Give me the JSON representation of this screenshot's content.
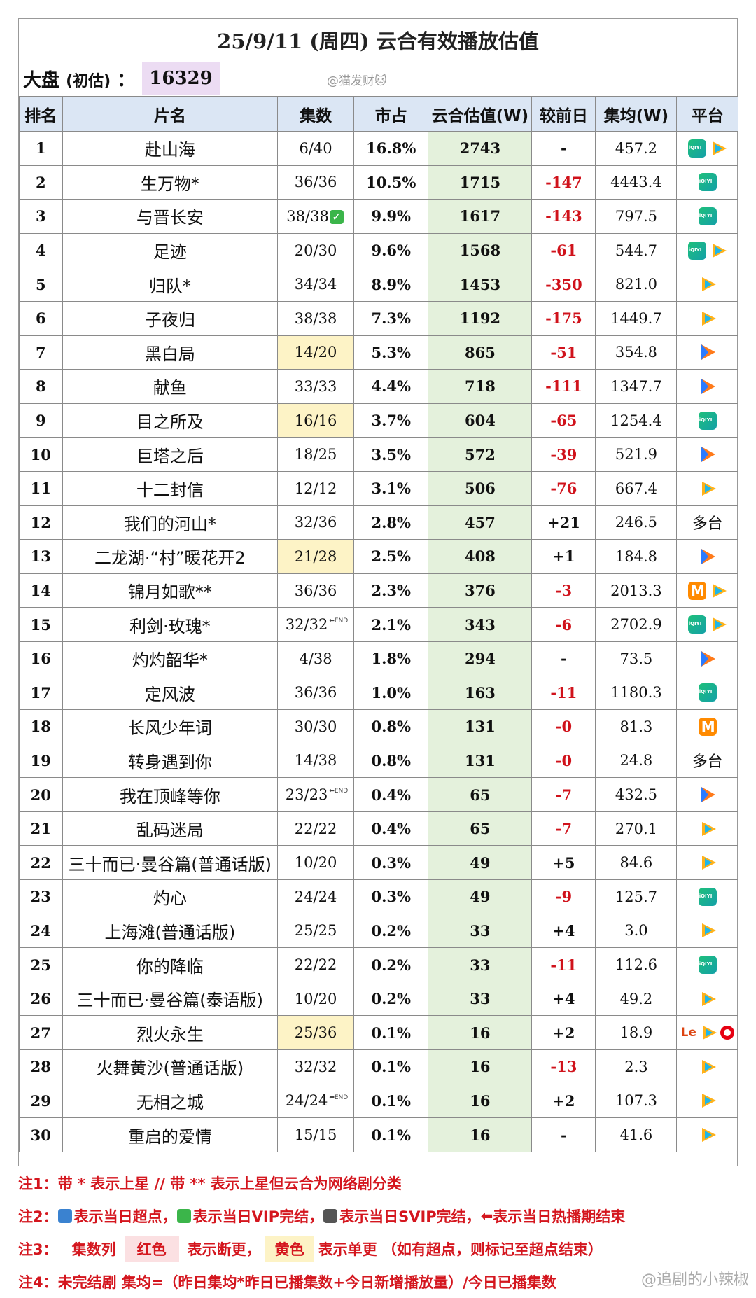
{
  "header": {
    "title": "25/9/11 (周四) 云合有效播放估值",
    "market_label": "大盘",
    "market_sub": "(初估)",
    "market_colon": "：",
    "market_value": "16329",
    "watermark": "@猫发财🐱"
  },
  "columns": [
    "排名",
    "片名",
    "集数",
    "市占",
    "云合估值(W)",
    "较前日",
    "集均(W)",
    "平台"
  ],
  "rows": [
    {
      "rank": "1",
      "name": "赴山海",
      "eps": "6/40",
      "share": "16.8%",
      "est": "2743",
      "chg": "-",
      "avg": "457.2",
      "plat": [
        "iqiyi",
        "tencent"
      ]
    },
    {
      "rank": "2",
      "name": "生万物*",
      "eps": "36/36",
      "share": "10.5%",
      "est": "1715",
      "chg": "-147",
      "avg": "4443.4",
      "plat": [
        "iqiyi"
      ]
    },
    {
      "rank": "3",
      "name": "与晋长安",
      "eps": "38/38",
      "eps_mark": "vip",
      "share": "9.9%",
      "est": "1617",
      "chg": "-143",
      "avg": "797.5",
      "plat": [
        "iqiyi"
      ]
    },
    {
      "rank": "4",
      "name": "足迹",
      "eps": "20/30",
      "share": "9.6%",
      "est": "1568",
      "chg": "-61",
      "avg": "544.7",
      "plat": [
        "iqiyi",
        "tencent"
      ]
    },
    {
      "rank": "5",
      "name": "归队*",
      "eps": "34/34",
      "share": "8.9%",
      "est": "1453",
      "chg": "-350",
      "avg": "821.0",
      "plat": [
        "tencent"
      ]
    },
    {
      "rank": "6",
      "name": "子夜归",
      "eps": "38/38",
      "share": "7.3%",
      "est": "1192",
      "chg": "-175",
      "avg": "1449.7",
      "plat": [
        "tencent"
      ]
    },
    {
      "rank": "7",
      "name": "黑白局",
      "eps": "14/20",
      "eps_hl": "yellow",
      "share": "5.3%",
      "est": "865",
      "chg": "-51",
      "avg": "354.8",
      "plat": [
        "youku"
      ]
    },
    {
      "rank": "8",
      "name": "献鱼",
      "eps": "33/33",
      "share": "4.4%",
      "est": "718",
      "chg": "-111",
      "avg": "1347.7",
      "plat": [
        "youku"
      ]
    },
    {
      "rank": "9",
      "name": "目之所及",
      "eps": "16/16",
      "eps_hl": "yellow",
      "share": "3.7%",
      "est": "604",
      "chg": "-65",
      "avg": "1254.4",
      "plat": [
        "iqiyi"
      ]
    },
    {
      "rank": "10",
      "name": "巨塔之后",
      "eps": "18/25",
      "share": "3.5%",
      "est": "572",
      "chg": "-39",
      "avg": "521.9",
      "plat": [
        "youku"
      ]
    },
    {
      "rank": "11",
      "name": "十二封信",
      "eps": "12/12",
      "share": "3.1%",
      "est": "506",
      "chg": "-76",
      "avg": "667.4",
      "plat": [
        "tencent"
      ]
    },
    {
      "rank": "12",
      "name": "我们的河山*",
      "eps": "32/36",
      "share": "2.8%",
      "est": "457",
      "chg": "+21",
      "avg": "246.5",
      "plat_text": "多台"
    },
    {
      "rank": "13",
      "name": "二龙湖·“村”暖花开2",
      "eps": "21/28",
      "eps_hl": "yellow",
      "share": "2.5%",
      "est": "408",
      "chg": "+1",
      "avg": "184.8",
      "plat": [
        "youku"
      ]
    },
    {
      "rank": "14",
      "name": "锦月如歌**",
      "eps": "36/36",
      "share": "2.3%",
      "est": "376",
      "chg": "-3",
      "avg": "2013.3",
      "plat": [
        "mango",
        "tencent"
      ]
    },
    {
      "rank": "15",
      "name": "利剑·玫瑰*",
      "eps": "32/32",
      "eps_mark": "end",
      "share": "2.1%",
      "est": "343",
      "chg": "-6",
      "avg": "2702.9",
      "plat": [
        "iqiyi",
        "tencent"
      ]
    },
    {
      "rank": "16",
      "name": "灼灼韶华*",
      "eps": "4/38",
      "share": "1.8%",
      "est": "294",
      "chg": "-",
      "avg": "73.5",
      "plat": [
        "youku"
      ]
    },
    {
      "rank": "17",
      "name": "定风波",
      "eps": "36/36",
      "share": "1.0%",
      "est": "163",
      "chg": "-11",
      "avg": "1180.3",
      "plat": [
        "iqiyi"
      ]
    },
    {
      "rank": "18",
      "name": "长风少年词",
      "eps": "30/30",
      "share": "0.8%",
      "est": "131",
      "chg": "-0",
      "avg": "81.3",
      "plat": [
        "mango"
      ]
    },
    {
      "rank": "19",
      "name": "转身遇到你",
      "eps": "14/38",
      "share": "0.8%",
      "est": "131",
      "chg": "-0",
      "avg": "24.8",
      "plat_text": "多台"
    },
    {
      "rank": "20",
      "name": "我在顶峰等你",
      "eps": "23/23",
      "eps_mark": "end",
      "share": "0.4%",
      "est": "65",
      "chg": "-7",
      "avg": "432.5",
      "plat": [
        "youku"
      ]
    },
    {
      "rank": "21",
      "name": "乱码迷局",
      "eps": "22/22",
      "share": "0.4%",
      "est": "65",
      "chg": "-7",
      "avg": "270.1",
      "plat": [
        "tencent"
      ]
    },
    {
      "rank": "22",
      "name": "三十而已·曼谷篇(普通话版)",
      "eps": "10/20",
      "share": "0.3%",
      "est": "49",
      "chg": "+5",
      "avg": "84.6",
      "plat": [
        "tencent"
      ]
    },
    {
      "rank": "23",
      "name": "灼心",
      "eps": "24/24",
      "share": "0.3%",
      "est": "49",
      "chg": "-9",
      "avg": "125.7",
      "plat": [
        "iqiyi"
      ]
    },
    {
      "rank": "24",
      "name": "上海滩(普通话版)",
      "eps": "25/25",
      "share": "0.2%",
      "est": "33",
      "chg": "+4",
      "avg": "3.0",
      "plat": [
        "tencent"
      ]
    },
    {
      "rank": "25",
      "name": "你的降临",
      "eps": "22/22",
      "share": "0.2%",
      "est": "33",
      "chg": "-11",
      "avg": "112.6",
      "plat": [
        "iqiyi"
      ]
    },
    {
      "rank": "26",
      "name": "三十而已·曼谷篇(泰语版)",
      "eps": "10/20",
      "share": "0.2%",
      "est": "33",
      "chg": "+4",
      "avg": "49.2",
      "plat": [
        "tencent"
      ]
    },
    {
      "rank": "27",
      "name": "烈火永生",
      "eps": "25/36",
      "eps_hl": "yellow",
      "share": "0.1%",
      "est": "16",
      "chg": "+2",
      "avg": "18.9",
      "plat": [
        "le",
        "tencent",
        "red"
      ]
    },
    {
      "rank": "28",
      "name": "火舞黄沙(普通话版)",
      "eps": "32/32",
      "share": "0.1%",
      "est": "16",
      "chg": "-13",
      "avg": "2.3",
      "plat": [
        "tencent"
      ]
    },
    {
      "rank": "29",
      "name": "无相之城",
      "eps": "24/24",
      "eps_mark": "end",
      "share": "0.1%",
      "est": "16",
      "chg": "+2",
      "avg": "107.3",
      "plat": [
        "tencent"
      ]
    },
    {
      "rank": "30",
      "name": "重启的爱情",
      "eps": "15/15",
      "share": "0.1%",
      "est": "16",
      "chg": "-",
      "avg": "41.6",
      "plat": [
        "tencent"
      ]
    }
  ],
  "notes": {
    "n1": "注1：带 * 表示上星 // 带 ** 表示上星但云合为网络剧分类",
    "n2_k": "注2：",
    "n2_a": "表示当日超点，",
    "n2_b": "表示当日VIP完结，",
    "n2_c": "表示当日SVIP完结，",
    "n2_d": "表示当日热播期结束",
    "n3_k": "注3：",
    "n3_a": "集数列",
    "n3_red": "红色",
    "n3_b": "表示断更，",
    "n3_yel": "黄色",
    "n3_c": "表示单更 （如有超点，则标记至超点结束）",
    "n4": "注4：未完结剧 集均=（昨日集均*昨日已播集数+今日新增播放量）/今日已播集数"
  },
  "footer_watermark": "@追剧的小辣椒",
  "icon_legend": {
    "iqiyi": "iqiyi-icon",
    "tencent": "tencent-video-icon",
    "youku": "youku-icon",
    "mango": "mango-tv-icon",
    "le": "letv-icon",
    "red": "red-circle-icon"
  }
}
